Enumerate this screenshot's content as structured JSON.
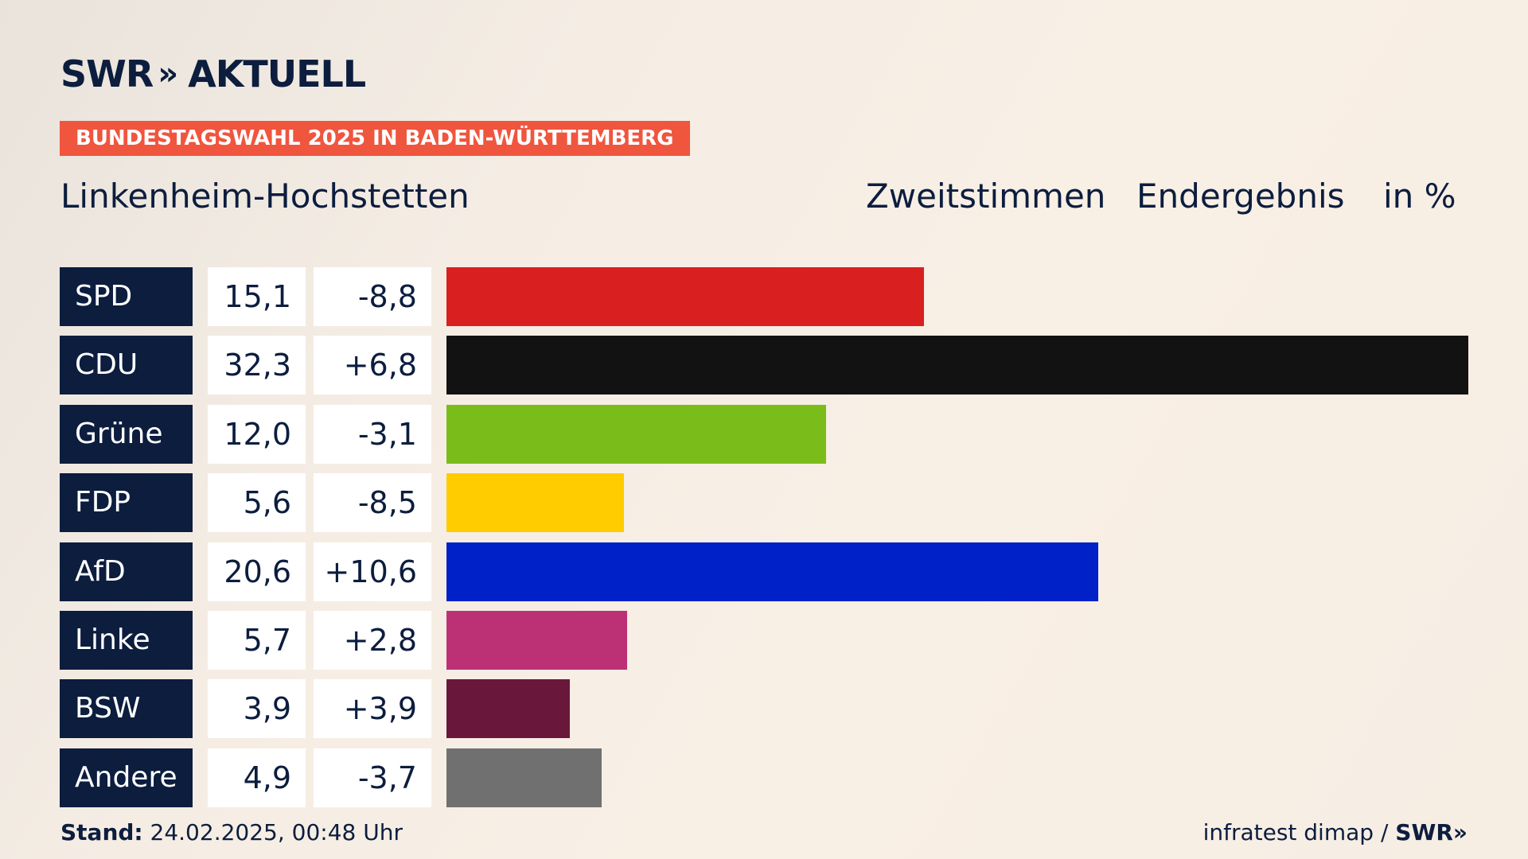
{
  "brand": {
    "logo_main": "SWR",
    "logo_chevrons": "»",
    "logo_suffix": "AKTUELL"
  },
  "badge": "BUNDESTAGSWAHL 2025 IN BADEN-WÜRTTEMBERG",
  "place": "Linkenheim-Hochstetten",
  "meta": {
    "vote_type": "Zweitstimmen",
    "status": "Endergebnis",
    "unit": "in %"
  },
  "chart_data": {
    "type": "bar",
    "orientation": "horizontal",
    "categories": [
      "SPD",
      "CDU",
      "Grüne",
      "FDP",
      "AfD",
      "Linke",
      "BSW",
      "Andere"
    ],
    "values": [
      15.1,
      32.3,
      12.0,
      5.6,
      20.6,
      5.7,
      3.9,
      4.9
    ],
    "values_label": [
      "15,1",
      "32,3",
      "12,0",
      "5,6",
      "20,6",
      "5,7",
      "3,9",
      "4,9"
    ],
    "diff_label": [
      "-8,8",
      "+6,8",
      "-3,1",
      "-8,5",
      "+10,6",
      "+2,8",
      "+3,9",
      "-3,7"
    ],
    "colors": [
      "#d91f1f",
      "#121212",
      "#7abd1b",
      "#ffcc00",
      "#0021c8",
      "#bc3176",
      "#6a173c",
      "#707070"
    ],
    "xlim": [
      0,
      32.3
    ]
  },
  "footer": {
    "stand_label": "Stand:",
    "stand_value": "24.02.2025, 00:48 Uhr",
    "source": "infratest dimap / ",
    "source_brand": "SWR",
    "source_chevrons": "»"
  }
}
